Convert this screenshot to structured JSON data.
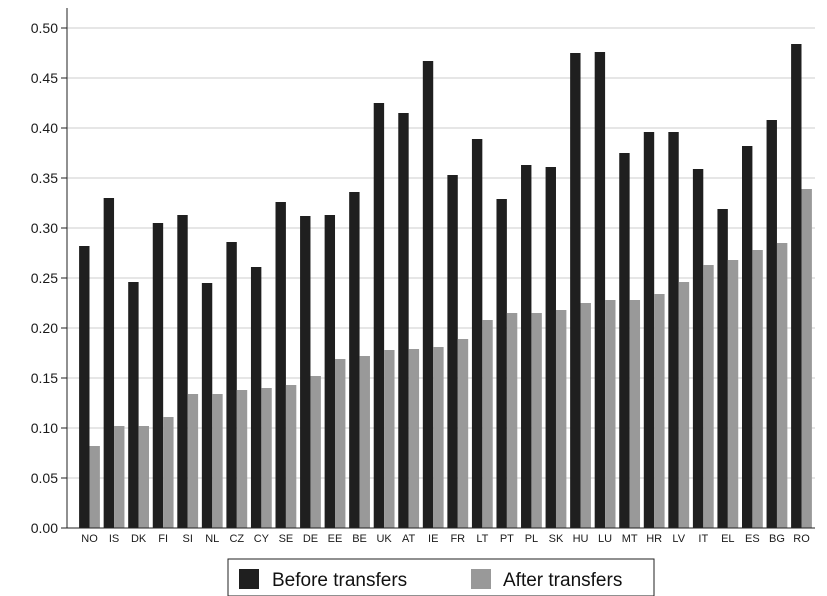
{
  "chart_data": {
    "type": "bar",
    "categories": [
      "NO",
      "IS",
      "DK",
      "FI",
      "SI",
      "NL",
      "CZ",
      "CY",
      "SE",
      "DE",
      "EE",
      "BE",
      "UK",
      "AT",
      "IE",
      "FR",
      "LT",
      "PT",
      "PL",
      "SK",
      "HU",
      "LU",
      "MT",
      "HR",
      "LV",
      "IT",
      "EL",
      "ES",
      "BG",
      "RO"
    ],
    "series": [
      {
        "name": "Before transfers",
        "color": "#1f1f1f",
        "values": [
          0.282,
          0.33,
          0.246,
          0.305,
          0.313,
          0.245,
          0.286,
          0.261,
          0.326,
          0.312,
          0.313,
          0.336,
          0.425,
          0.415,
          0.467,
          0.353,
          0.389,
          0.329,
          0.363,
          0.361,
          0.475,
          0.476,
          0.375,
          0.396,
          0.396,
          0.359,
          0.319,
          0.382,
          0.408,
          0.484
        ]
      },
      {
        "name": "After transfers",
        "color": "#999999",
        "values": [
          0.082,
          0.102,
          0.102,
          0.111,
          0.134,
          0.134,
          0.138,
          0.14,
          0.143,
          0.152,
          0.169,
          0.172,
          0.178,
          0.179,
          0.181,
          0.189,
          0.208,
          0.215,
          0.215,
          0.218,
          0.225,
          0.228,
          0.228,
          0.234,
          0.246,
          0.263,
          0.268,
          0.278,
          0.285,
          0.339
        ]
      }
    ],
    "yticks": [
      "0.00",
      "0.05",
      "0.10",
      "0.15",
      "0.20",
      "0.25",
      "0.30",
      "0.35",
      "0.40",
      "0.45",
      "0.50"
    ],
    "ylim": [
      0,
      0.5
    ],
    "grid": "horizontal",
    "legend_position": "bottom-center"
  },
  "legend": {
    "before_label": "Before transfers",
    "after_label": "After transfers"
  }
}
